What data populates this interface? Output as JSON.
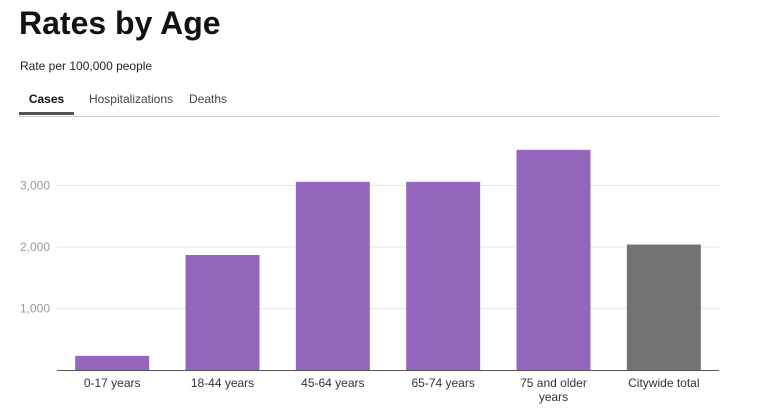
{
  "header": {
    "title": "Rates by Age",
    "subtitle": "Rate per 100,000 people"
  },
  "tabs": [
    {
      "label": "Cases",
      "active": true
    },
    {
      "label": "Hospitalizations",
      "active": false
    },
    {
      "label": "Deaths",
      "active": false
    }
  ],
  "colors": {
    "age_bar": "#9467bd",
    "total_bar": "#737373",
    "grid": "#e6e6e6",
    "axis": "#555555",
    "tick_text": "#999999"
  },
  "chart_data": {
    "type": "bar",
    "categories": [
      [
        "0-17 years"
      ],
      [
        "18-44 years"
      ],
      [
        "45-64 years"
      ],
      [
        "65-74 years"
      ],
      [
        "75 and older",
        "years"
      ],
      [
        "Citywide total"
      ]
    ],
    "values": [
      230,
      1870,
      3060,
      3060,
      3580,
      2040
    ],
    "highlight": [
      false,
      false,
      false,
      false,
      false,
      true
    ],
    "yticks": [
      1000,
      2000,
      3000
    ],
    "ytick_labels": [
      "1,000",
      "2,000",
      "3,000"
    ],
    "ylim": [
      0,
      3700
    ],
    "grid": true,
    "title": "",
    "xlabel": "",
    "ylabel": ""
  }
}
